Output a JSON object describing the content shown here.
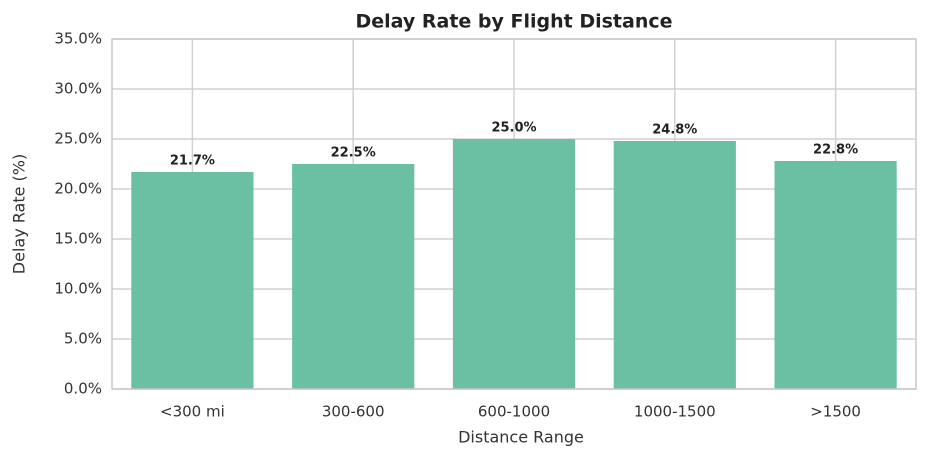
{
  "chart_data": {
    "type": "bar",
    "title": "Delay Rate by Flight Distance",
    "x_label": "Distance Range",
    "y_label": "Delay Rate (%)",
    "categories": [
      "<300 mi",
      "300-600",
      "600-1000",
      "1000-1500",
      ">1500"
    ],
    "values": [
      21.7,
      22.5,
      25.0,
      24.8,
      22.8
    ],
    "value_labels": [
      "21.7%",
      "22.5%",
      "25.0%",
      "24.8%",
      "22.8%"
    ],
    "color": "#6bc0a4",
    "ylim": [
      0,
      35
    ],
    "yticks": [
      {
        "value": 0,
        "label": "0.0%"
      },
      {
        "value": 5,
        "label": "5.0%"
      },
      {
        "value": 10,
        "label": "10.0%"
      },
      {
        "value": 15,
        "label": "15.0%"
      },
      {
        "value": 20,
        "label": "20.0%"
      },
      {
        "value": 25,
        "label": "25.0%"
      },
      {
        "value": 30,
        "label": "30.0%"
      },
      {
        "value": 35,
        "label": "35.0%"
      }
    ],
    "grid": true
  }
}
